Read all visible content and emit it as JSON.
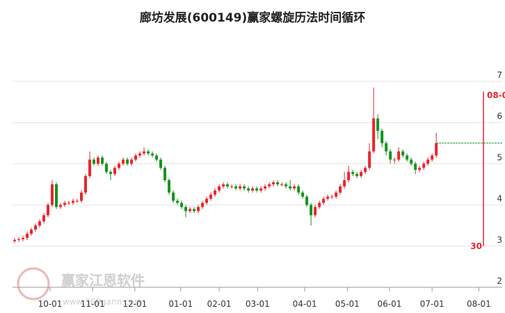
{
  "chart_data": {
    "type": "candlestick",
    "title": "廊坊发展(600149)赢家螺旋历法时间循环",
    "up_color": "#e8262c",
    "down_color": "#14941e",
    "open": [
      3.12,
      3.15,
      3.17,
      3.2,
      3.3,
      3.4,
      3.5,
      3.6,
      3.75,
      4.0,
      4.5,
      3.95,
      4.0,
      4.05,
      4.05,
      4.1,
      4.1,
      4.3,
      4.7,
      5.1,
      5.0,
      5.15,
      5.0,
      4.8,
      4.75,
      4.9,
      5.0,
      5.1,
      5.0,
      5.1,
      5.2,
      5.25,
      5.3,
      5.25,
      5.2,
      5.1,
      4.9,
      4.6,
      4.3,
      4.1,
      4.05,
      3.95,
      3.85,
      3.9,
      3.85,
      3.95,
      4.05,
      4.15,
      4.25,
      4.35,
      4.45,
      4.5,
      4.45,
      4.45,
      4.4,
      4.45,
      4.4,
      4.35,
      4.4,
      4.35,
      4.4,
      4.45,
      4.5,
      4.55,
      4.5,
      4.5,
      4.45,
      4.4,
      4.45,
      4.3,
      4.2,
      4.0,
      3.75,
      3.95,
      4.05,
      4.15,
      4.2,
      4.2,
      4.3,
      4.45,
      4.6,
      4.8,
      4.75,
      4.7,
      4.8,
      4.9,
      5.3,
      6.1,
      5.8,
      5.5,
      5.3,
      5.1,
      5.1,
      5.3,
      5.2,
      5.1,
      5.0,
      4.85,
      4.9,
      5.0,
      5.1,
      5.2
    ],
    "high": [
      3.2,
      3.22,
      3.25,
      3.35,
      3.45,
      3.55,
      3.65,
      3.8,
      4.05,
      4.6,
      4.55,
      4.05,
      4.1,
      4.1,
      4.15,
      4.15,
      4.35,
      4.75,
      5.3,
      5.15,
      5.2,
      5.2,
      5.05,
      4.85,
      4.95,
      5.05,
      5.15,
      5.15,
      5.15,
      5.25,
      5.3,
      5.4,
      5.35,
      5.3,
      5.25,
      5.15,
      4.95,
      4.65,
      4.35,
      4.15,
      4.1,
      4.0,
      3.95,
      3.95,
      4.0,
      4.1,
      4.2,
      4.3,
      4.4,
      4.5,
      4.55,
      4.55,
      4.5,
      4.5,
      4.5,
      4.5,
      4.45,
      4.45,
      4.45,
      4.45,
      4.5,
      4.55,
      4.6,
      4.6,
      4.55,
      4.55,
      4.6,
      4.5,
      4.5,
      4.35,
      4.25,
      4.05,
      4.0,
      4.1,
      4.2,
      4.25,
      4.25,
      4.35,
      4.5,
      4.8,
      4.95,
      4.85,
      4.8,
      4.85,
      4.95,
      5.5,
      6.85,
      6.2,
      5.85,
      5.55,
      5.35,
      5.15,
      5.4,
      5.35,
      5.25,
      5.15,
      5.05,
      4.95,
      5.05,
      5.15,
      5.25,
      5.75
    ],
    "low": [
      3.07,
      3.1,
      3.12,
      3.15,
      3.25,
      3.35,
      3.45,
      3.55,
      3.7,
      3.95,
      3.9,
      3.9,
      3.95,
      4.0,
      4.0,
      4.05,
      4.05,
      4.25,
      4.65,
      4.95,
      4.95,
      4.95,
      4.75,
      4.6,
      4.7,
      4.85,
      4.95,
      4.95,
      4.95,
      5.05,
      5.15,
      5.2,
      5.2,
      5.15,
      5.05,
      4.85,
      4.55,
      4.25,
      4.05,
      4.0,
      3.9,
      3.7,
      3.8,
      3.8,
      3.8,
      3.9,
      4.0,
      4.1,
      4.2,
      4.3,
      4.4,
      4.4,
      4.4,
      4.35,
      4.35,
      4.35,
      4.3,
      4.3,
      4.3,
      4.3,
      4.35,
      4.4,
      4.45,
      4.45,
      4.45,
      4.4,
      4.35,
      4.35,
      4.25,
      4.15,
      3.95,
      3.5,
      3.7,
      3.9,
      4.0,
      4.1,
      4.15,
      4.15,
      4.25,
      4.4,
      4.55,
      4.7,
      4.65,
      4.65,
      4.75,
      4.85,
      5.25,
      5.6,
      5.4,
      5.2,
      5.0,
      5.0,
      5.05,
      5.15,
      5.05,
      4.95,
      4.75,
      4.8,
      4.85,
      4.95,
      5.05,
      5.15
    ],
    "close": [
      3.15,
      3.17,
      3.2,
      3.3,
      3.4,
      3.5,
      3.6,
      3.75,
      4.0,
      4.5,
      3.95,
      4.0,
      4.05,
      4.05,
      4.1,
      4.1,
      4.3,
      4.7,
      5.1,
      5.0,
      5.15,
      5.0,
      4.8,
      4.75,
      4.9,
      5.0,
      5.1,
      5.0,
      5.1,
      5.2,
      5.25,
      5.3,
      5.25,
      5.2,
      5.1,
      4.9,
      4.6,
      4.3,
      4.1,
      4.05,
      3.95,
      3.85,
      3.9,
      3.85,
      3.95,
      4.05,
      4.15,
      4.25,
      4.35,
      4.45,
      4.5,
      4.45,
      4.45,
      4.4,
      4.45,
      4.4,
      4.35,
      4.4,
      4.35,
      4.4,
      4.45,
      4.5,
      4.55,
      4.5,
      4.5,
      4.45,
      4.4,
      4.45,
      4.3,
      4.2,
      4.0,
      3.75,
      3.95,
      4.05,
      4.15,
      4.2,
      4.2,
      4.3,
      4.45,
      4.6,
      4.8,
      4.75,
      4.7,
      4.8,
      4.9,
      5.3,
      6.1,
      5.8,
      5.5,
      5.3,
      5.1,
      5.1,
      5.3,
      5.2,
      5.1,
      5.0,
      4.85,
      4.9,
      5.0,
      5.1,
      5.2,
      5.5
    ],
    "hline": 5.5,
    "hline_color": "#14941e",
    "cycle_marker": {
      "x": 112.3,
      "ylim": [
        3.0,
        6.75
      ],
      "color": "#e8262c",
      "label_top": "08-0",
      "label_bottom": "30"
    },
    "xlim": [
      -0.5,
      116.8
    ],
    "xticks": [
      {
        "value": 8.5,
        "label": "10-01"
      },
      {
        "value": 18.7,
        "label": "11-01"
      },
      {
        "value": 28.8,
        "label": "12-01"
      },
      {
        "value": 39.8,
        "label": "01-01"
      },
      {
        "value": 49,
        "label": "02-01"
      },
      {
        "value": 58.2,
        "label": "03-01"
      },
      {
        "value": 69.5,
        "label": "04-01"
      },
      {
        "value": 79.7,
        "label": "05-01"
      },
      {
        "value": 89.8,
        "label": "06-01"
      },
      {
        "value": 100,
        "label": "07-01"
      },
      {
        "value": 111.2,
        "label": "08-01"
      }
    ],
    "ylim": [
      2,
      7
    ],
    "yticks": [
      2,
      3,
      4,
      5,
      6,
      7
    ],
    "grid": true,
    "watermark": {
      "name": "赢家江恩软件",
      "url": "www.360gann.com"
    }
  }
}
